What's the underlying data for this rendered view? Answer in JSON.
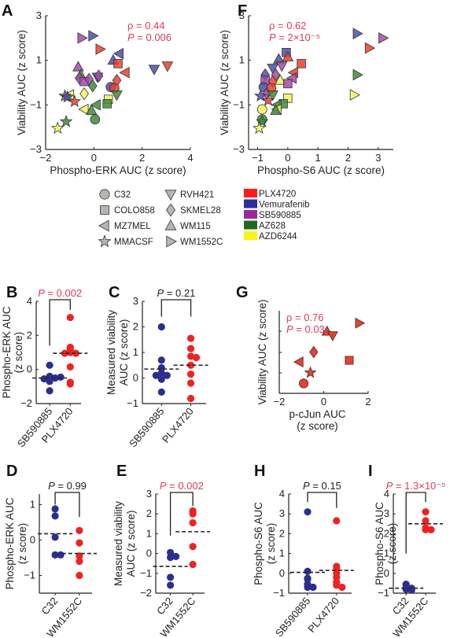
{
  "colors": {
    "PLX4720": "#e8412f",
    "Vemurafenib": "#4b4fa6",
    "SB590885": "#a34aa8",
    "AZ628": "#3f8a3c",
    "AZD6244": "#f2f25a",
    "stat_red": "#e03a5a",
    "dot_blue": "#2a2f8f",
    "dot_red": "#ee2222"
  },
  "legend": {
    "shapes": [
      {
        "label": "C32",
        "shape": "circle"
      },
      {
        "label": "COLO858",
        "shape": "square"
      },
      {
        "label": "MZ7MEL",
        "shape": "tri-left"
      },
      {
        "label": "MMACSF",
        "shape": "star"
      },
      {
        "label": "RVH421",
        "shape": "tri-down"
      },
      {
        "label": "SKMEL28",
        "shape": "diamond"
      },
      {
        "label": "WM115",
        "shape": "tri-up"
      },
      {
        "label": "WM1552C",
        "shape": "tri-right"
      }
    ],
    "drugs": [
      {
        "label": "PLX4720",
        "color": "#ff1a1a"
      },
      {
        "label": "Vemurafenib",
        "color": "#2b2f96"
      },
      {
        "label": "SB590885",
        "color": "#992a99"
      },
      {
        "label": "AZ628",
        "color": "#1f6a22"
      },
      {
        "label": "AZD6244",
        "color": "#f5f51a"
      }
    ]
  },
  "chart_data": [
    {
      "panel": "A",
      "type": "scatter",
      "xlabel": "Phospho-ERK AUC (z score)",
      "ylabel": "Viability AUC (z score)",
      "xlim": [
        -2,
        4
      ],
      "ylim": [
        -3,
        3
      ],
      "xticks": [
        "−2",
        "0",
        "2",
        "4"
      ],
      "yticks": [
        "−3",
        "−1",
        "1",
        "3"
      ],
      "stat_lines": [
        "ρ = 0.44",
        "P = 0.006"
      ],
      "points": [
        {
          "x": -0.5,
          "y": 2.0,
          "shape": "tri-right",
          "drug": "SB590885"
        },
        {
          "x": -0.05,
          "y": 2.1,
          "shape": "tri-right",
          "drug": "Vemurafenib"
        },
        {
          "x": 0.25,
          "y": 1.5,
          "shape": "tri-right",
          "drug": "PLX4720"
        },
        {
          "x": 1.05,
          "y": 1.3,
          "shape": "tri-left",
          "drug": "Vemurafenib"
        },
        {
          "x": 0.8,
          "y": 1.0,
          "shape": "tri-up",
          "drug": "Vemurafenib"
        },
        {
          "x": 1.0,
          "y": 0.85,
          "shape": "square",
          "drug": "PLX4720"
        },
        {
          "x": 2.5,
          "y": 0.6,
          "shape": "tri-down",
          "drug": "Vemurafenib"
        },
        {
          "x": 3.05,
          "y": 0.75,
          "shape": "tri-down",
          "drug": "PLX4720"
        },
        {
          "x": 1.3,
          "y": 0.45,
          "shape": "tri-left",
          "drug": "PLX4720"
        },
        {
          "x": -0.65,
          "y": 0.7,
          "shape": "tri-up",
          "drug": "SB590885"
        },
        {
          "x": -0.55,
          "y": 0.35,
          "shape": "tri-up",
          "drug": "AZ628"
        },
        {
          "x": -0.6,
          "y": 0.2,
          "shape": "diamond",
          "drug": "SB590885"
        },
        {
          "x": -0.4,
          "y": 0.05,
          "shape": "square",
          "drug": "SB590885"
        },
        {
          "x": -0.2,
          "y": 0.15,
          "shape": "diamond",
          "drug": "SB590885"
        },
        {
          "x": 0.15,
          "y": 0.25,
          "shape": "tri-down",
          "drug": "Vemurafenib"
        },
        {
          "x": 0.2,
          "y": 0.3,
          "shape": "diamond",
          "drug": "SB590885"
        },
        {
          "x": -0.05,
          "y": -0.15,
          "shape": "diamond",
          "drug": "AZ628"
        },
        {
          "x": 0.95,
          "y": 0.1,
          "shape": "diamond",
          "drug": "PLX4720"
        },
        {
          "x": 0.7,
          "y": -0.2,
          "shape": "circle",
          "drug": "Vemurafenib"
        },
        {
          "x": 0.85,
          "y": -0.25,
          "shape": "circle",
          "drug": "PLX4720"
        },
        {
          "x": 0.95,
          "y": -0.55,
          "shape": "tri-down",
          "drug": "AZ628"
        },
        {
          "x": -0.4,
          "y": -0.5,
          "shape": "diamond",
          "drug": "AZD6244"
        },
        {
          "x": -1.0,
          "y": -0.55,
          "shape": "tri-left",
          "drug": "AZD6244"
        },
        {
          "x": -1.2,
          "y": -0.6,
          "shape": "star",
          "drug": "SB590885"
        },
        {
          "x": -1.1,
          "y": -0.65,
          "shape": "star",
          "drug": "Vemurafenib"
        },
        {
          "x": -0.8,
          "y": -0.85,
          "shape": "star",
          "drug": "PLX4720"
        },
        {
          "x": 0.6,
          "y": -0.75,
          "shape": "square",
          "drug": "AZD6244"
        },
        {
          "x": 0.55,
          "y": -0.95,
          "shape": "square",
          "drug": "AZ628"
        },
        {
          "x": 0.1,
          "y": -1.0,
          "shape": "tri-left",
          "drug": "AZ628"
        },
        {
          "x": -0.4,
          "y": -1.2,
          "shape": "tri-left",
          "drug": "AZD6244"
        },
        {
          "x": -0.1,
          "y": -1.25,
          "shape": "tri-up",
          "drug": "AZ628"
        },
        {
          "x": 0.05,
          "y": -1.65,
          "shape": "circle",
          "drug": "AZ628"
        },
        {
          "x": -1.15,
          "y": -1.75,
          "shape": "star",
          "drug": "AZ628"
        },
        {
          "x": -1.5,
          "y": -2.05,
          "shape": "star",
          "drug": "AZD6244"
        }
      ]
    },
    {
      "panel": "F",
      "type": "scatter",
      "xlabel": "Phospho-S6 AUC (z score)",
      "ylabel": "Viability AUC (z score)",
      "xlim": [
        -1.3,
        3.5
      ],
      "ylim": [
        -3,
        3
      ],
      "xticks": [
        "−1",
        "0",
        "1",
        "2",
        "3"
      ],
      "yticks": [
        "−3",
        "−1",
        "1",
        "3"
      ],
      "stat_lines": [
        "ρ = 0.62",
        "P = 2×10⁻⁵"
      ],
      "points": [
        {
          "x": 2.3,
          "y": 2.2,
          "shape": "tri-right",
          "drug": "Vemurafenib"
        },
        {
          "x": 3.15,
          "y": 2.0,
          "shape": "tri-right",
          "drug": "SB590885"
        },
        {
          "x": 2.7,
          "y": 1.55,
          "shape": "tri-right",
          "drug": "PLX4720"
        },
        {
          "x": 2.3,
          "y": 0.35,
          "shape": "tri-right",
          "drug": "AZ628"
        },
        {
          "x": 2.2,
          "y": -0.55,
          "shape": "tri-right",
          "drug": "AZD6244"
        },
        {
          "x": -0.05,
          "y": 1.35,
          "shape": "square",
          "drug": "Vemurafenib"
        },
        {
          "x": 0.0,
          "y": 1.15,
          "shape": "tri-up",
          "drug": "PLX4720"
        },
        {
          "x": -0.3,
          "y": 1.05,
          "shape": "tri-up",
          "drug": "Vemurafenib"
        },
        {
          "x": 0.45,
          "y": 0.85,
          "shape": "square",
          "drug": "PLX4720"
        },
        {
          "x": -0.2,
          "y": 0.75,
          "shape": "tri-down",
          "drug": "SB590885"
        },
        {
          "x": -0.5,
          "y": 0.65,
          "shape": "tri-down",
          "drug": "Vemurafenib"
        },
        {
          "x": 0.2,
          "y": 0.45,
          "shape": "tri-left",
          "drug": "PLX4720"
        },
        {
          "x": -0.75,
          "y": 0.35,
          "shape": "diamond",
          "drug": "Vemurafenib"
        },
        {
          "x": -0.4,
          "y": 0.35,
          "shape": "diamond",
          "drug": "SB590885"
        },
        {
          "x": 0.15,
          "y": 0.2,
          "shape": "tri-left",
          "drug": "SB590885"
        },
        {
          "x": -0.25,
          "y": 0.1,
          "shape": "tri-up",
          "drug": "AZD6244"
        },
        {
          "x": -0.75,
          "y": 0.1,
          "shape": "square",
          "drug": "SB590885"
        },
        {
          "x": -0.5,
          "y": 0.05,
          "shape": "diamond",
          "drug": "PLX4720"
        },
        {
          "x": 0.0,
          "y": -0.05,
          "shape": "square",
          "drug": "SB590885"
        },
        {
          "x": -0.8,
          "y": -0.2,
          "shape": "circle",
          "drug": "Vemurafenib"
        },
        {
          "x": -0.55,
          "y": -0.25,
          "shape": "circle",
          "drug": "PLX4720"
        },
        {
          "x": -0.7,
          "y": -0.5,
          "shape": "diamond",
          "drug": "SB590885"
        },
        {
          "x": -0.5,
          "y": -0.55,
          "shape": "tri-down",
          "drug": "AZ628"
        },
        {
          "x": -0.9,
          "y": -0.6,
          "shape": "star",
          "drug": "Vemurafenib"
        },
        {
          "x": -0.65,
          "y": -0.8,
          "shape": "star",
          "drug": "PLX4720"
        },
        {
          "x": 0.0,
          "y": -0.7,
          "shape": "square",
          "drug": "AZD6244"
        },
        {
          "x": -0.15,
          "y": -0.95,
          "shape": "square",
          "drug": "AZ628"
        },
        {
          "x": -0.35,
          "y": -1.0,
          "shape": "tri-left",
          "drug": "AZ628"
        },
        {
          "x": -0.35,
          "y": -1.2,
          "shape": "tri-left",
          "drug": "AZD6244"
        },
        {
          "x": -0.4,
          "y": -1.25,
          "shape": "tri-up",
          "drug": "AZ628"
        },
        {
          "x": -0.85,
          "y": -1.2,
          "shape": "circle",
          "drug": "AZD6244"
        },
        {
          "x": -0.85,
          "y": -1.65,
          "shape": "circle",
          "drug": "AZ628"
        },
        {
          "x": -0.85,
          "y": -1.75,
          "shape": "star",
          "drug": "AZ628"
        },
        {
          "x": -0.95,
          "y": -2.05,
          "shape": "star",
          "drug": "AZD6244"
        }
      ]
    },
    {
      "panel": "G",
      "type": "scatter",
      "xlabel": "p-cJun AUC",
      "xlabel2": "(z score)",
      "ylabel": "Viability AUC (z score)",
      "xlim": [
        -2,
        2
      ],
      "xticks": [
        "−2",
        "0",
        "2"
      ],
      "stat_lines": [
        "ρ = 0.76",
        "P = 0.03"
      ],
      "points": [
        {
          "x": 1.6,
          "y": 0.85,
          "shape": "tri-right",
          "drug": "PLX4720"
        },
        {
          "x": 0.15,
          "y": 0.75,
          "shape": "tri-up",
          "drug": "PLX4720"
        },
        {
          "x": 0.4,
          "y": 0.7,
          "shape": "tri-down",
          "drug": "PLX4720"
        },
        {
          "x": -0.45,
          "y": 0.5,
          "shape": "diamond",
          "drug": "PLX4720"
        },
        {
          "x": 1.15,
          "y": 0.4,
          "shape": "square",
          "drug": "PLX4720"
        },
        {
          "x": -1.1,
          "y": 0.38,
          "shape": "tri-left",
          "drug": "PLX4720"
        },
        {
          "x": -0.6,
          "y": 0.25,
          "shape": "star",
          "drug": "PLX4720"
        },
        {
          "x": -0.9,
          "y": 0.12,
          "shape": "circle",
          "drug": "PLX4720"
        }
      ]
    },
    {
      "panel": "B",
      "type": "strip",
      "ylabel": "Phospho-ERK AUC",
      "ylabel2": "(z score)",
      "ylim": [
        -2,
        4
      ],
      "yticks": [
        "−2",
        "0",
        "2",
        "4"
      ],
      "stat": "P = 0.002",
      "stat_sig": true,
      "categories": [
        "SB590885",
        "PLX4720"
      ],
      "groups": [
        {
          "color": "blue",
          "values": [
            0.25,
            -0.4,
            -0.45,
            -0.5,
            -0.55,
            -0.7,
            -0.45,
            -1.25
          ],
          "mean": -0.5
        },
        {
          "color": "red",
          "values": [
            3.05,
            1.3,
            1.0,
            0.95,
            1.15,
            0.95,
            0.15,
            -0.75,
            -0.85
          ],
          "mean": 0.95
        }
      ]
    },
    {
      "panel": "C",
      "type": "strip",
      "ylabel": "Measured viability",
      "ylabel2": "AUC (z score)",
      "ylim": [
        -1,
        3
      ],
      "yticks": [
        "−1",
        "0",
        "1",
        "2",
        "3"
      ],
      "stat": "P = 0.21",
      "stat_sig": false,
      "categories": [
        "SB590885",
        "PLX4720"
      ],
      "groups": [
        {
          "color": "blue",
          "values": [
            2.0,
            0.7,
            0.4,
            0.2,
            0.1,
            0.1,
            -0.05,
            -0.55
          ],
          "mean": 0.35
        },
        {
          "color": "red",
          "values": [
            1.55,
            1.15,
            0.85,
            0.8,
            0.5,
            0.15,
            -0.2,
            -0.8
          ],
          "mean": 0.5
        }
      ]
    },
    {
      "panel": "D",
      "type": "strip",
      "ylabel": "Phospho-ERK AUC",
      "ylabel2": "(z score)",
      "ylim": [
        -1.5,
        1.3
      ],
      "yticks": [
        "−1",
        "0",
        "1"
      ],
      "stat": "P = 0.99",
      "stat_sig": false,
      "categories": [
        "C32",
        "WM1552C"
      ],
      "groups": [
        {
          "color": "blue",
          "values": [
            0.88,
            0.68,
            0.08,
            -0.42,
            -0.42
          ],
          "mean": 0.18
        },
        {
          "color": "red",
          "values": [
            0.27,
            -0.08,
            -0.45,
            -0.6,
            -1.0
          ],
          "mean": -0.38
        }
      ]
    },
    {
      "panel": "E",
      "type": "strip",
      "ylabel": "Measured viability",
      "ylabel2": "AUC (z score)",
      "ylim": [
        -2,
        3
      ],
      "yticks": [
        "−2",
        "−1",
        "0",
        "1",
        "2",
        "3"
      ],
      "stat": "P = 0.002",
      "stat_sig": true,
      "categories": [
        "C32",
        "WM1552C"
      ],
      "groups": [
        {
          "color": "blue",
          "values": [
            0.05,
            -0.2,
            -0.15,
            -1.2,
            -1.6
          ],
          "mean": -0.65
        },
        {
          "color": "red",
          "values": [
            2.0,
            2.15,
            1.55,
            0.35,
            -0.55
          ],
          "mean": 1.1
        }
      ]
    },
    {
      "panel": "H",
      "type": "strip",
      "ylabel": "Phospho-S6 AUC",
      "ylabel2": "(z score)",
      "ylim": [
        -1,
        4
      ],
      "yticks": [
        "−1",
        "0",
        "1",
        "2",
        "3",
        "4"
      ],
      "stat": "P = 0.15",
      "stat_sig": false,
      "categories": [
        "SB590885",
        "PLX4720"
      ],
      "groups": [
        {
          "color": "blue",
          "values": [
            3.1,
            0.1,
            -0.25,
            -0.3,
            -0.55,
            -0.7,
            -0.7
          ],
          "mean": 0.05
        },
        {
          "color": "red",
          "values": [
            2.65,
            0.35,
            0.2,
            0.0,
            -0.2,
            -0.45,
            -0.6,
            -0.7
          ],
          "mean": 0.15
        }
      ]
    },
    {
      "panel": "I",
      "type": "strip",
      "ylabel": "Phospho-S6 AUC",
      "ylabel2": "(z score)",
      "ylim": [
        -1,
        4
      ],
      "yticks": [
        "−1",
        "0",
        "1",
        "2",
        "3",
        "4"
      ],
      "stat": "P = 1.3×10⁻⁵",
      "stat_sig": true,
      "categories": [
        "C32",
        "WM1552C"
      ],
      "groups": [
        {
          "color": "blue",
          "values": [
            -0.55,
            -0.7,
            -0.75,
            -0.8,
            -0.85
          ],
          "mean": -0.75
        },
        {
          "color": "red",
          "values": [
            3.1,
            2.65,
            2.3,
            2.2,
            2.2
          ],
          "mean": 2.5
        }
      ]
    }
  ],
  "panel_labels": [
    "A",
    "F",
    "B",
    "C",
    "G",
    "D",
    "E",
    "H",
    "I"
  ]
}
